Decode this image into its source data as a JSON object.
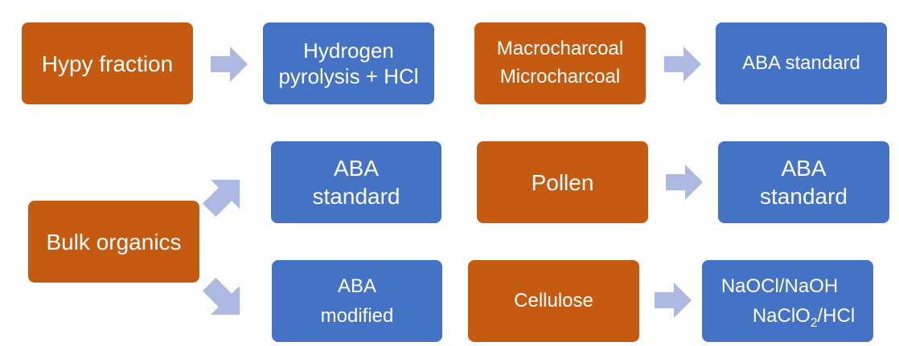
{
  "colors": {
    "orange_box": "#c55a11",
    "blue_box": "#4472c4",
    "arrow": "#adb9e0",
    "text": "#ffffff"
  },
  "row1": {
    "hypy": {
      "label": "Hypy fraction"
    },
    "hypy_method": {
      "line1": "Hydrogen",
      "line2": "pyrolysis + HCl"
    },
    "charcoal": {
      "line1": "Macrocharcoal",
      "line2": "Microcharcoal"
    },
    "charcoal_method": {
      "label": "ABA standard"
    }
  },
  "row2": {
    "bulk": {
      "label": "Bulk organics"
    },
    "bulk_method_standard": {
      "line1": "ABA",
      "line2": "standard"
    },
    "pollen": {
      "label": "Pollen"
    },
    "pollen_method": {
      "line1": "ABA",
      "line2": "standard"
    }
  },
  "row3": {
    "bulk_method_modified": {
      "line1": "ABA",
      "line2": "modified"
    },
    "cellulose": {
      "label": "Cellulose"
    },
    "cellulose_method": {
      "line1": "NaOCl/NaOH",
      "line2_prefix": "NaClO",
      "line2_sub": "2",
      "line2_suffix": "/HCl"
    }
  },
  "icons": {
    "arrow": "right-arrow-icon"
  }
}
